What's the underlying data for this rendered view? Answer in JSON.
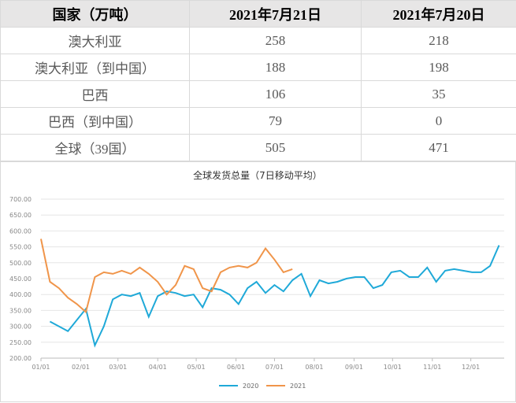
{
  "table": {
    "header": [
      "国家（万吨）",
      "2021年7月21日",
      "2021年7月20日"
    ],
    "rows": [
      [
        "澳大利亚",
        "258",
        "218"
      ],
      [
        "澳大利亚（到中国）",
        "188",
        "198"
      ],
      [
        "巴西",
        "106",
        "35"
      ],
      [
        "巴西（到中国）",
        "79",
        "0"
      ],
      [
        "全球（39国）",
        "505",
        "471"
      ]
    ]
  },
  "chart_data": {
    "type": "line",
    "title": "全球发货总量（7日移动平均）",
    "xlim": [
      0,
      361
    ],
    "xticks": [
      {
        "value": 0,
        "label": "01/01"
      },
      {
        "value": 31,
        "label": "02/01"
      },
      {
        "value": 60,
        "label": "03/01"
      },
      {
        "value": 91,
        "label": "04/01"
      },
      {
        "value": 121,
        "label": "05/01"
      },
      {
        "value": 152,
        "label": "06/01"
      },
      {
        "value": 182,
        "label": "07/01"
      },
      {
        "value": 213,
        "label": "08/01"
      },
      {
        "value": 244,
        "label": "09/01"
      },
      {
        "value": 274,
        "label": "10/01"
      },
      {
        "value": 305,
        "label": "11/01"
      },
      {
        "value": 335,
        "label": "12/01"
      }
    ],
    "ylim": [
      200,
      700
    ],
    "yticks": [
      {
        "value": 200,
        "label": "200.00"
      },
      {
        "value": 250,
        "label": "250.00"
      },
      {
        "value": 300,
        "label": "300.00"
      },
      {
        "value": 350,
        "label": "350.00"
      },
      {
        "value": 400,
        "label": "400.00"
      },
      {
        "value": 450,
        "label": "450.00"
      },
      {
        "value": 500,
        "label": "500.00"
      },
      {
        "value": 550,
        "label": "550.00"
      },
      {
        "value": 600,
        "label": "600.00"
      },
      {
        "value": 650,
        "label": "650.00"
      },
      {
        "value": 700,
        "label": "700.00"
      }
    ],
    "grid": true,
    "series": [
      {
        "name": "2020",
        "color": "#1fa9d8",
        "x": [
          7,
          14,
          21,
          28,
          35,
          42,
          49,
          56,
          63,
          70,
          77,
          84,
          91,
          98,
          105,
          112,
          119,
          126,
          133,
          140,
          147,
          154,
          161,
          168,
          175,
          182,
          189,
          196,
          203,
          210,
          217,
          224,
          231,
          238,
          245,
          252,
          259,
          266,
          273,
          280,
          287,
          294,
          301,
          308,
          315,
          322,
          329,
          336,
          343,
          350,
          357
        ],
        "values": [
          315,
          300,
          285,
          320,
          355,
          240,
          300,
          385,
          400,
          395,
          405,
          330,
          395,
          410,
          405,
          395,
          400,
          360,
          420,
          415,
          400,
          370,
          420,
          440,
          405,
          430,
          410,
          445,
          465,
          395,
          445,
          435,
          440,
          450,
          455,
          455,
          420,
          430,
          470,
          475,
          455,
          455,
          485,
          440,
          475,
          480,
          475,
          470,
          470,
          490,
          555
        ]
      },
      {
        "name": "2021",
        "color": "#f0954a",
        "x": [
          0,
          7,
          14,
          21,
          28,
          35,
          42,
          49,
          56,
          63,
          70,
          77,
          84,
          91,
          98,
          105,
          112,
          119,
          126,
          133,
          140,
          147,
          154,
          161,
          168,
          175,
          182,
          189,
          196
        ],
        "values": [
          575,
          440,
          420,
          390,
          370,
          345,
          455,
          470,
          465,
          475,
          465,
          485,
          465,
          440,
          400,
          430,
          490,
          480,
          420,
          410,
          470,
          485,
          490,
          485,
          500,
          545,
          510,
          470,
          480
        ]
      }
    ]
  }
}
